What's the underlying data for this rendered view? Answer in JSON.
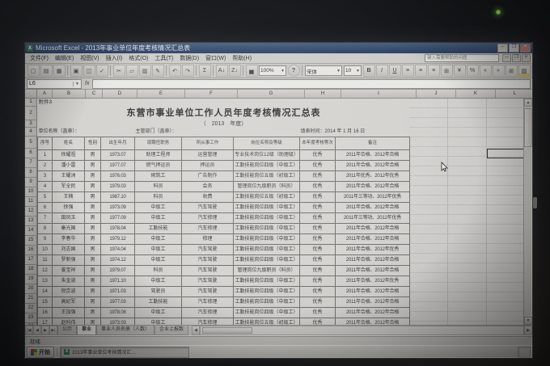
{
  "window": {
    "title": "Microsoft Excel - 2013年事业单位年度考核情况汇总表",
    "help_placeholder": "键入需要帮助的问题",
    "controls": {
      "minimize": "─",
      "maximize": "❐",
      "close": "×"
    }
  },
  "menu": {
    "items": [
      "文件(F)",
      "编辑(E)",
      "视图(V)",
      "插入(I)",
      "格式(O)",
      "工具(T)",
      "数据(D)",
      "窗口(W)",
      "帮助(H)"
    ]
  },
  "toolbar": {
    "std_icons": [
      [
        "new-file-icon",
        "▢"
      ],
      [
        "open-folder-icon",
        "▤"
      ],
      [
        "save-icon",
        "▦"
      ],
      [
        "print-icon",
        "▣"
      ],
      [
        "print-preview-icon",
        "◫"
      ],
      [
        "spellcheck-icon",
        "✓"
      ],
      [
        "cut-icon",
        "✂"
      ],
      [
        "copy-icon",
        "▱"
      ],
      [
        "paste-icon",
        "▥"
      ],
      [
        "format-painter-icon",
        "✎"
      ],
      [
        "undo-icon",
        "↶"
      ],
      [
        "redo-icon",
        "↷"
      ],
      [
        "autosum-icon",
        "Σ"
      ],
      [
        "sort-ascending-icon",
        "A↓"
      ],
      [
        "sort-descending-icon",
        "Z↓"
      ],
      [
        "chart-wizard-icon",
        "▅"
      ]
    ],
    "zoom_value": "100%",
    "help_icon": "?",
    "font_name": "宋体",
    "font_size": "10",
    "fmt_icons": [
      [
        "bold-icon",
        "B",
        "b"
      ],
      [
        "italic-icon",
        "I",
        "i"
      ],
      [
        "underline-icon",
        "U",
        "u"
      ],
      [
        "align-left-icon",
        "≡"
      ],
      [
        "align-center-icon",
        "≡"
      ],
      [
        "align-right-icon",
        "≡"
      ],
      [
        "merge-center-icon",
        "⊞"
      ],
      [
        "currency-icon",
        "¥"
      ],
      [
        "percent-icon",
        "%"
      ],
      [
        "decrease-indent-icon",
        "«"
      ],
      [
        "increase-indent-icon",
        "»"
      ],
      [
        "borders-icon",
        "⊞"
      ],
      [
        "fill-color-icon",
        "▨",
        "yellowbar"
      ],
      [
        "font-color-icon",
        "A",
        "redbar"
      ]
    ]
  },
  "formula_bar": {
    "name_box": "L6",
    "fx_label": "fx"
  },
  "grid": {
    "columns": [
      "A",
      "B",
      "C",
      "D",
      "E",
      "F",
      "G",
      "H",
      "I",
      "J",
      "K",
      "L",
      "M"
    ],
    "rows": [
      "1",
      "2",
      "3",
      "4",
      "5",
      "6",
      "7",
      "8",
      "9",
      "10",
      "11",
      "12",
      "13",
      "14",
      "15",
      "16",
      "17",
      "18",
      "19",
      "20",
      "21",
      "22",
      "23",
      "24"
    ]
  },
  "sheet": {
    "attachment": "附件3",
    "title": "东营市事业单位工作人员年度考核情况汇总表",
    "subtitle": "（　2013　年度）",
    "unit_label": "单位名称（盖章）：",
    "dept_label": "主管部门（盖章）：",
    "date_label": "填表时间：2014 年 1 月 16 日",
    "table": {
      "headers": [
        "序号",
        "姓名",
        "性别",
        "出生年月",
        "现聘任职务",
        "所从事工作",
        "岗位名称及等级",
        "本年度考核等次",
        "备注"
      ],
      "rows": [
        [
          "1",
          "徐耀祖",
          "男",
          "1973.07",
          "助理工程师",
          "运营管理",
          "专业技术岗位12级（助理级）",
          "优秀",
          "2011年合格、2012年合格"
        ],
        [
          "2",
          "潘小雷",
          "男",
          "1977.07",
          "燃气押运员",
          "押运员",
          "工勤技能岗位四级（中级工）",
          "优秀",
          "2011年合格、2012年合格"
        ],
        [
          "3",
          "王耀洲",
          "男",
          "1976.03",
          "砌筑工",
          "广告制作",
          "工勤技能岗位五级（初级工）",
          "优秀",
          "2011年优秀、2012年优秀"
        ],
        [
          "4",
          "军全民",
          "男",
          "1979.03",
          "科员",
          "会务",
          "管理岗位九级职员（科员）",
          "优秀",
          "2011年合格、2012年合格"
        ],
        [
          "5",
          "王楠",
          "男",
          "1987.10",
          "科员",
          "收费",
          "工勤技能岗位五级（初级工）",
          "优秀",
          "2011年三等功、2012年优秀"
        ],
        [
          "6",
          "徐强",
          "男",
          "1973.09",
          "中级工",
          "汽车驾驶",
          "工勤技能岗位四级（中级工）",
          "优秀",
          "2011年合格、2012年合格"
        ],
        [
          "7",
          "田凤玉",
          "男",
          "1977.09",
          "中级工",
          "汽车修理",
          "工勤技能岗位四级（中级工）",
          "优秀",
          "2011年三等功、2012年优秀"
        ],
        [
          "8",
          "秦光国",
          "男",
          "1978.04",
          "工勤技能",
          "汽车修理",
          "工勤技能岗位四级（中级工）",
          "优秀",
          "2011年合格、2012年合格"
        ],
        [
          "9",
          "李春华",
          "男",
          "1979.12",
          "中级工",
          "修理",
          "工勤技能岗位四级（中级工）",
          "优秀",
          "2011年合格、2012年合格"
        ],
        [
          "10",
          "刘志国",
          "男",
          "1974.04",
          "中级工",
          "汽车驾驶",
          "工勤技能岗位四级（中级工）",
          "优秀",
          "2011年合格、2012年优秀"
        ],
        [
          "11",
          "罗新强",
          "男",
          "1974.12",
          "中级工",
          "汽车驾驶",
          "工勤技能岗位四级（中级工）",
          "优秀",
          "2011年合格、2012年合格"
        ],
        [
          "12",
          "姜宝祥",
          "男",
          "1979.07",
          "科员",
          "汽车驾驶",
          "管理岗位九级职员（科员）",
          "优秀",
          "2011年合格、2012年合格"
        ],
        [
          "13",
          "朱金波",
          "男",
          "1971.10",
          "中级工",
          "汽车驾驶",
          "工勤技能岗位四级（中级工）",
          "优秀",
          "2011年合格、2012年优秀"
        ],
        [
          "14",
          "倪京波",
          "男",
          "1971.03",
          "驾驶员",
          "汽车驾驶",
          "工勤技能岗位四级（中级工）",
          "优秀",
          "2011年合格、2012年合格"
        ],
        [
          "15",
          "高纪军",
          "男",
          "1977.03",
          "工勤技能",
          "汽车修理",
          "工勤技能岗位四级（中级工）",
          "优秀",
          "2011年合格、2012年合格"
        ],
        [
          "16",
          "王加强",
          "男",
          "1978.08",
          "中级工",
          "汽车修理",
          "工勤技能岗位四级（中级工）",
          "优秀",
          "2011年合格、2012年合格"
        ],
        [
          "17",
          "赵科伟",
          "男",
          "1973.03",
          "中级工",
          "汽车修理",
          "工勤技能岗位五级（初级工）",
          "优秀",
          "2011年合格、2012年合格"
        ],
        [
          "18",
          "刘峰",
          "男",
          "1975.08",
          "科员",
          "汽车驾驶",
          "工勤技能岗位九级职员",
          "优秀",
          "2011年合格、2012年优秀"
        ],
        [
          "",
          "",
          "",
          "",
          "",
          "",
          "工勤技能岗位",
          "",
          ""
        ]
      ]
    }
  },
  "tabs": {
    "labels": [
      "公示",
      "事业",
      "事业人员名册（人数）",
      "企业上报数"
    ],
    "active": "事业"
  },
  "status": {
    "ready": "就绪"
  },
  "taskbar": {
    "start_label": "开始",
    "task_label": "2013年事业单位考核情况汇…"
  },
  "colors": {
    "titlebar": "#23406a",
    "excel_green": "#2d7a4f",
    "led_green": "#6fc33f"
  }
}
